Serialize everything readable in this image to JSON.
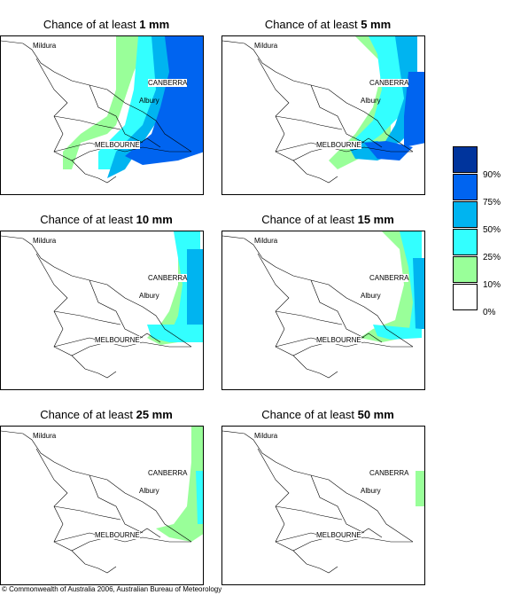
{
  "panels": [
    {
      "prefix": "Chance of at least ",
      "amount": "1 mm"
    },
    {
      "prefix": "Chance of at least ",
      "amount": "5 mm"
    },
    {
      "prefix": "Chance of at least ",
      "amount": "10 mm"
    },
    {
      "prefix": "Chance of at least ",
      "amount": "15 mm"
    },
    {
      "prefix": "Chance of at least ",
      "amount": "25 mm"
    },
    {
      "prefix": "Chance of at least ",
      "amount": "50 mm"
    }
  ],
  "places": {
    "mildura": "Mildura",
    "canberra": "CANBERRA",
    "albury": "Albury",
    "melbourne": "MELBOURNE"
  },
  "legend": [
    {
      "label": "90%",
      "color": "#00349c"
    },
    {
      "label": "75%",
      "color": "#0064f0"
    },
    {
      "label": "50%",
      "color": "#00b4f0"
    },
    {
      "label": "25%",
      "color": "#33ffff"
    },
    {
      "label": "10%",
      "color": "#99ff99"
    },
    {
      "label": "0%",
      "color": "#ffffff"
    }
  ],
  "copyright": "© Commonwealth of Australia 2006, Australian Bureau of Meteorology"
}
